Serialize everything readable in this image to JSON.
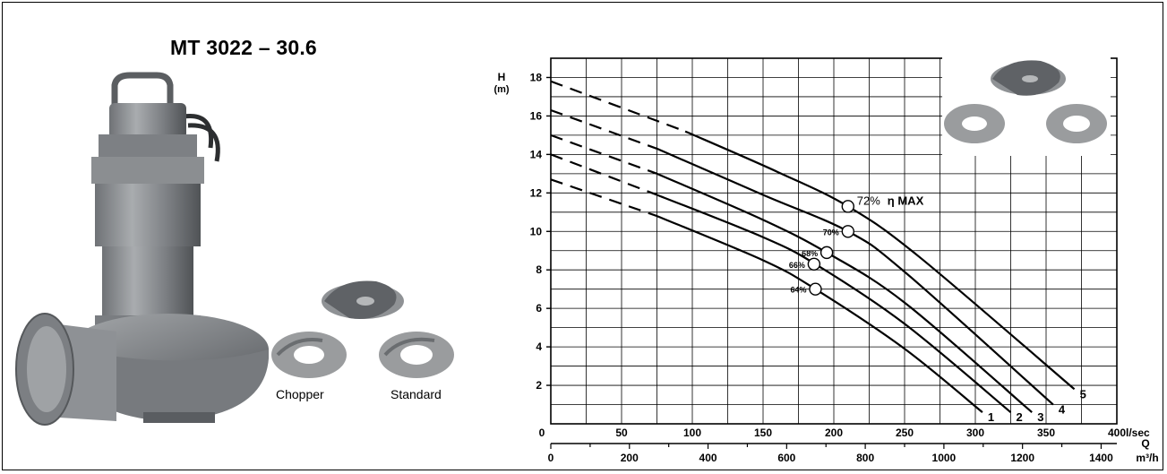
{
  "header": {
    "title": "MT 3022 – 30.6"
  },
  "impellers": {
    "chopper_label": "Chopper",
    "standard_label": "Standard"
  },
  "colors": {
    "pump_body": "#8a8d90",
    "pump_dark": "#4e5154",
    "impeller": "#9a9c9e",
    "line": "#000000"
  },
  "icons": {
    "pump": "submersible-pump-image",
    "impeller": "impeller-image"
  },
  "chart_data": {
    "type": "line",
    "ylabel": "H\n(m)",
    "xlabel_lps": "l/sec",
    "xlabel_q": "Q",
    "xlabel_m3h": "m³/h",
    "ylim": [
      0,
      19
    ],
    "xlim_lps": [
      0,
      400
    ],
    "xlim_m3h": [
      0,
      1440
    ],
    "y_ticks": [
      2,
      4,
      6,
      8,
      10,
      12,
      14,
      16,
      18
    ],
    "x_ticks_lps": [
      "0",
      "50",
      "100",
      "150",
      "200",
      "250",
      "300",
      "350",
      "400"
    ],
    "x_ticks_m3h": [
      "0",
      "200",
      "400",
      "600",
      "800",
      "1000",
      "1200",
      "1400"
    ],
    "grid": true,
    "series": [
      {
        "name": "1",
        "dashed_until": 75,
        "points": [
          [
            0,
            12.7
          ],
          [
            75,
            10.8
          ],
          [
            150,
            8.5
          ],
          [
            187,
            7.0
          ],
          [
            250,
            3.9
          ],
          [
            305,
            0.6
          ]
        ]
      },
      {
        "name": "2",
        "dashed_until": 75,
        "points": [
          [
            0,
            14.0
          ],
          [
            75,
            11.9
          ],
          [
            150,
            9.7
          ],
          [
            187,
            8.3
          ],
          [
            250,
            5.2
          ],
          [
            325,
            0.6
          ]
        ]
      },
      {
        "name": "3",
        "dashed_until": 75,
        "points": [
          [
            0,
            15.0
          ],
          [
            75,
            13.0
          ],
          [
            150,
            10.6
          ],
          [
            195,
            8.9
          ],
          [
            250,
            6.3
          ],
          [
            340,
            0.6
          ]
        ]
      },
      {
        "name": "4",
        "dashed_until": 75,
        "points": [
          [
            0,
            16.3
          ],
          [
            75,
            14.3
          ],
          [
            150,
            11.9
          ],
          [
            210,
            10.0
          ],
          [
            250,
            7.9
          ],
          [
            355,
            1.0
          ]
        ]
      },
      {
        "name": "5",
        "dashed_until": 95,
        "points": [
          [
            0,
            17.8
          ],
          [
            95,
            15.2
          ],
          [
            160,
            13.1
          ],
          [
            210,
            11.3
          ],
          [
            260,
            8.7
          ],
          [
            370,
            1.8
          ]
        ]
      }
    ],
    "efficiency_markers": [
      {
        "label": "64%",
        "x": 187,
        "y": 7.0
      },
      {
        "label": "66%",
        "x": 186,
        "y": 8.3
      },
      {
        "label": "68%",
        "x": 195,
        "y": 8.9
      },
      {
        "label": "70%",
        "x": 210,
        "y": 10.0
      },
      {
        "label": "72%",
        "x": 210,
        "y": 11.3
      }
    ],
    "annotation_max": "η  MAX"
  }
}
